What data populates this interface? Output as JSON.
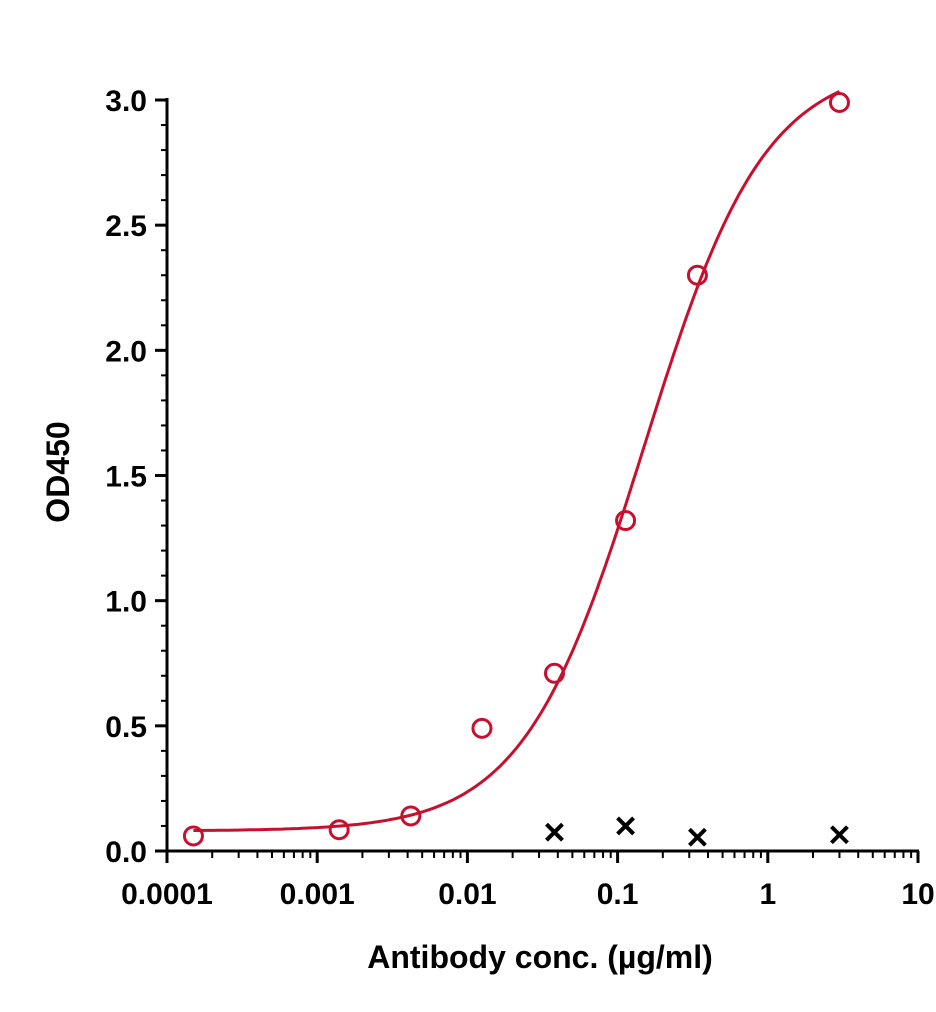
{
  "chart_data": {
    "type": "scatter",
    "title": "",
    "xlabel": "Antibody conc. (µg/ml)",
    "ylabel": "OD450",
    "x_scale": "log",
    "xlim": [
      0.0001,
      10
    ],
    "ylim": [
      0,
      3.0
    ],
    "grid": false,
    "legend": "none",
    "x_ticks": [
      0.0001,
      0.001,
      0.01,
      0.1,
      1,
      10
    ],
    "x_tick_labels": [
      "0.0001",
      "0.001",
      "0.01",
      "0.1",
      "1",
      "10"
    ],
    "y_ticks": [
      0,
      0.5,
      1.0,
      1.5,
      2.0,
      2.5,
      3.0
    ],
    "y_tick_labels": [
      "0.0",
      "0.5",
      "1.0",
      "1.5",
      "2.0",
      "2.5",
      "3.0"
    ],
    "series": [
      {
        "marker": "circle",
        "color": "#c8102e",
        "x": [
          0.00015,
          0.0014,
          0.0042,
          0.0125,
          0.038,
          0.113,
          0.34,
          3.0
        ],
        "y": [
          0.06,
          0.085,
          0.14,
          0.49,
          0.71,
          1.32,
          2.3,
          2.99
        ],
        "fit": {
          "model": "4PL",
          "bottom": 0.08,
          "top": 3.15,
          "ec50": 0.15,
          "hill": 1.08
        }
      },
      {
        "marker": "x",
        "color": "#000000",
        "x": [
          0.038,
          0.113,
          0.34,
          3.0
        ],
        "y": [
          0.075,
          0.1,
          0.055,
          0.065
        ]
      }
    ]
  }
}
